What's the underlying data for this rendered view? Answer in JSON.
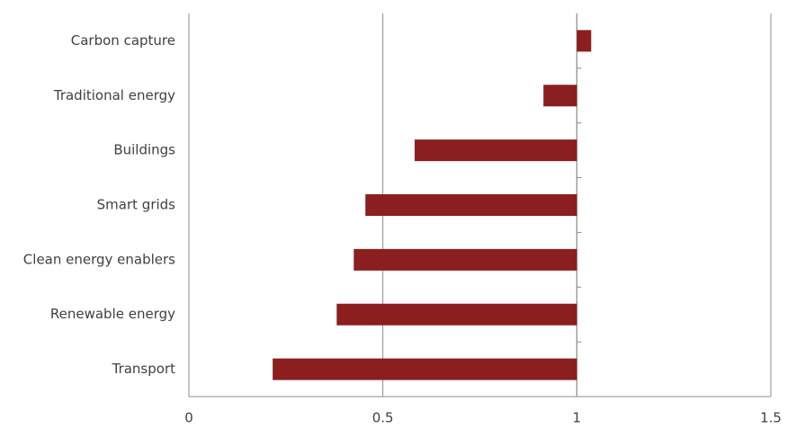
{
  "chart_data": {
    "type": "hbar",
    "categories": [
      "Carbon capture",
      "Traditional energy",
      "Buildings",
      "Smart grids",
      "Clean energy enablers",
      "Renewable energy",
      "Transport"
    ],
    "values": [
      1.037,
      0.914,
      0.582,
      0.455,
      0.425,
      0.381,
      0.216
    ],
    "color": "#8b1e1e",
    "category_axis_at": 1,
    "xlim": [
      0,
      1.5
    ],
    "xticks": [
      0,
      0.5,
      1,
      1.5
    ],
    "grid": true
  }
}
